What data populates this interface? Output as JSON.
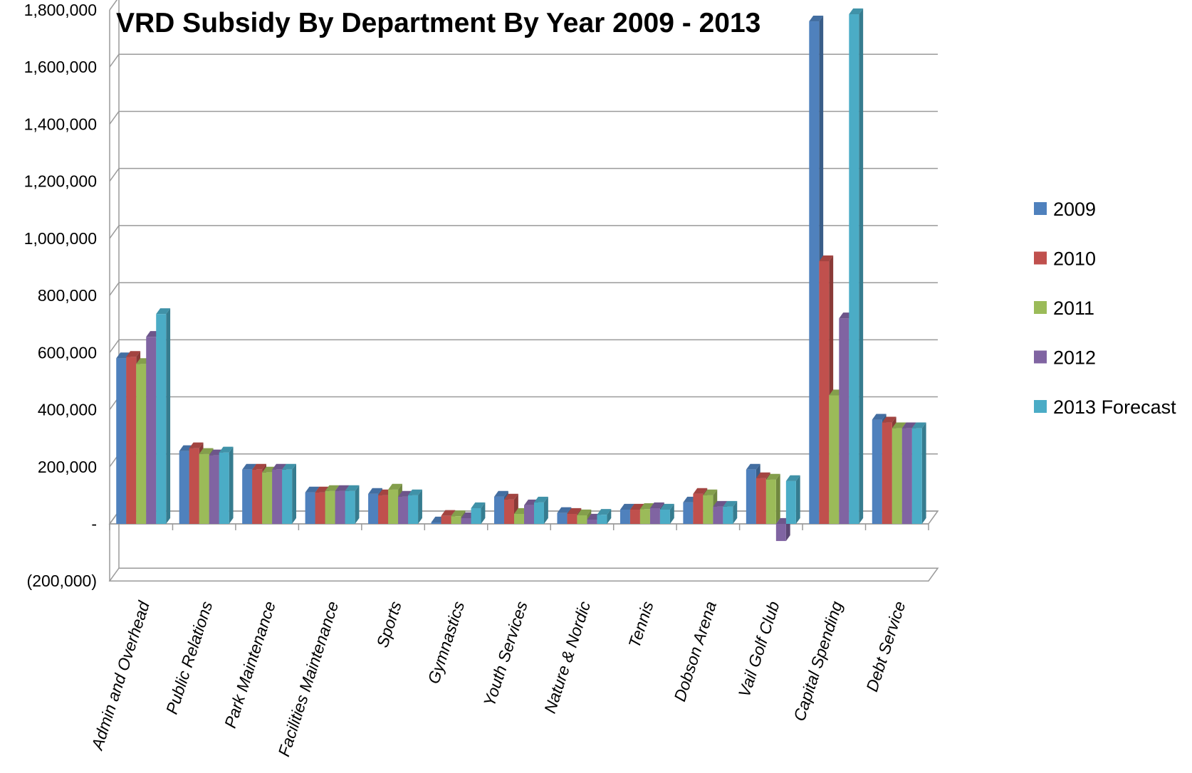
{
  "chart_data": {
    "type": "bar",
    "title": "VRD Subsidy By Department By Year 2009 - 2013",
    "xlabel": "",
    "ylabel": "",
    "ylim": [
      -200000,
      1800000
    ],
    "y_ticks": [
      {
        "value": 1800000,
        "label": "1,800,000"
      },
      {
        "value": 1600000,
        "label": "1,600,000"
      },
      {
        "value": 1400000,
        "label": "1,400,000"
      },
      {
        "value": 1200000,
        "label": "1,200,000"
      },
      {
        "value": 1000000,
        "label": "1,000,000"
      },
      {
        "value": 800000,
        "label": "800,000"
      },
      {
        "value": 600000,
        "label": "600,000"
      },
      {
        "value": 400000,
        "label": "400,000"
      },
      {
        "value": 200000,
        "label": "200,000"
      },
      {
        "value": 0,
        "label": "-"
      },
      {
        "value": -200000,
        "label": "(200,000)"
      }
    ],
    "grid": true,
    "legend_position": "right",
    "categories": [
      "Admin and Overhead",
      "Public Relations",
      "Park Maintenance",
      "Facilities Maintenance",
      "Sports",
      "Gymnastics",
      "Youth Services",
      "Nature & Nordic",
      "Tennis",
      "Dobson Arena",
      "Vail Golf Club",
      "Capital Spending",
      "Debt Service"
    ],
    "series": [
      {
        "name": "2009",
        "color": "#4F81BD",
        "values": [
          580000,
          255000,
          190000,
          110000,
          105000,
          5000,
          95000,
          38000,
          50000,
          75000,
          190000,
          1760000,
          365000
        ]
      },
      {
        "name": "2010",
        "color": "#C0504D",
        "values": [
          585000,
          265000,
          190000,
          110000,
          100000,
          28000,
          85000,
          35000,
          50000,
          105000,
          160000,
          920000,
          355000
        ]
      },
      {
        "name": "2011",
        "color": "#9BBB59",
        "values": [
          560000,
          245000,
          180000,
          115000,
          120000,
          27000,
          35000,
          30000,
          52000,
          100000,
          155000,
          450000,
          335000
        ]
      },
      {
        "name": "2012",
        "color": "#8064A2",
        "values": [
          655000,
          240000,
          190000,
          115000,
          95000,
          20000,
          65000,
          15000,
          55000,
          60000,
          -60000,
          720000,
          335000
        ]
      },
      {
        "name": "2013 Forecast",
        "color": "#4BACC6",
        "values": [
          735000,
          250000,
          190000,
          115000,
          100000,
          55000,
          75000,
          32000,
          50000,
          60000,
          150000,
          1785000,
          335000
        ]
      }
    ]
  }
}
